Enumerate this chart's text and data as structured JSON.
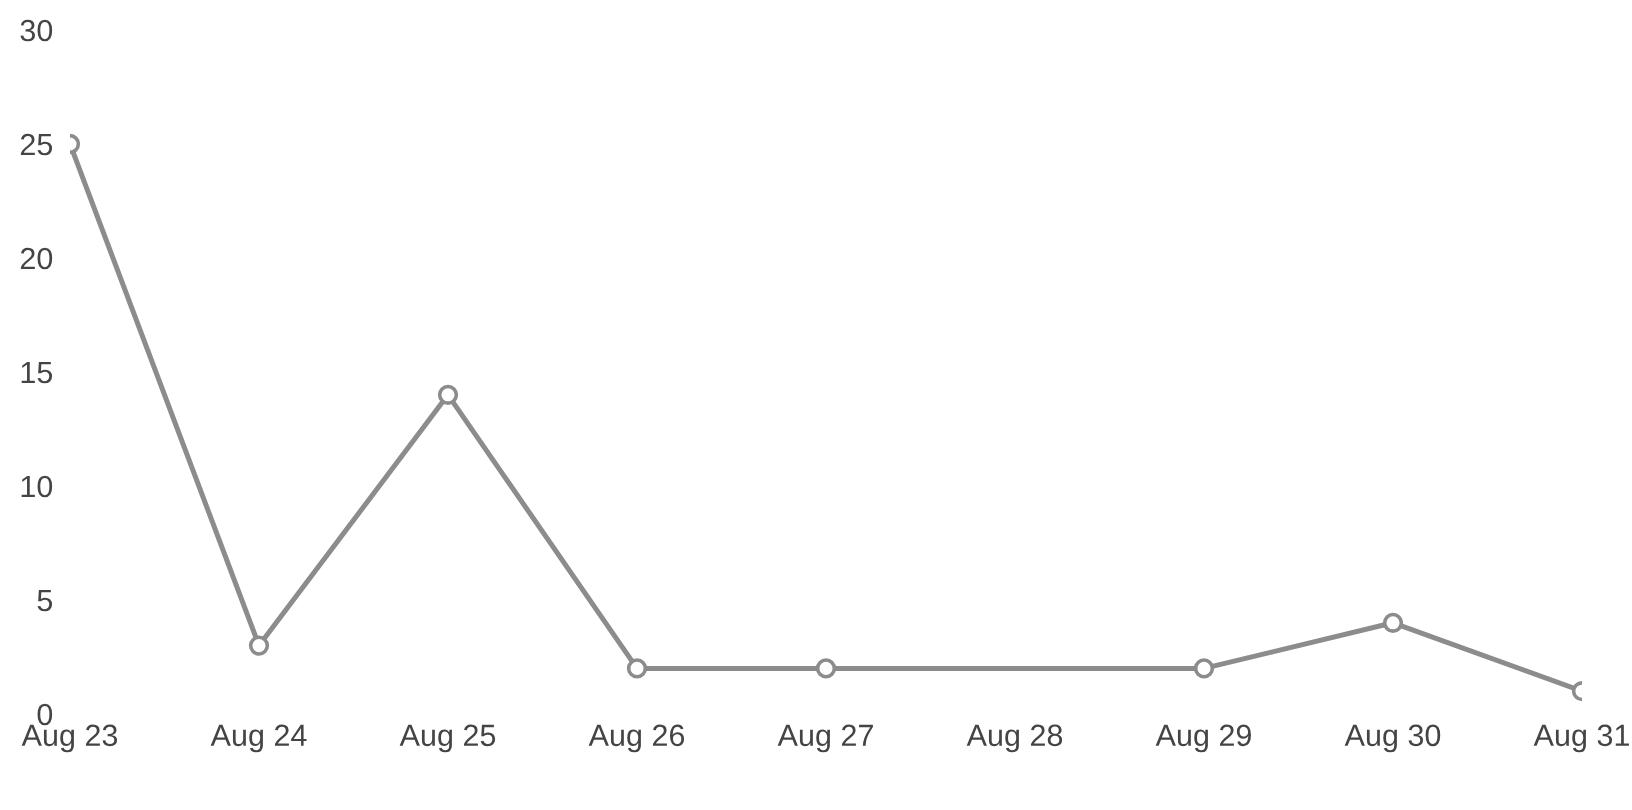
{
  "chart_data": {
    "type": "line",
    "categories": [
      "Aug 23",
      "Aug 24",
      "Aug 25",
      "Aug 26",
      "Aug 27",
      "Aug 28",
      "Aug 29",
      "Aug 30",
      "Aug 31"
    ],
    "series": [
      {
        "color": "#8c8c8c",
        "values": [
          25,
          3,
          14,
          2,
          2,
          null,
          2,
          4,
          1
        ]
      }
    ],
    "ylim": [
      0,
      30
    ],
    "yticks": [
      0,
      5,
      10,
      15,
      20,
      25,
      30
    ],
    "marker": "circle",
    "line_style": "solid",
    "grid": false,
    "legend": false
  }
}
